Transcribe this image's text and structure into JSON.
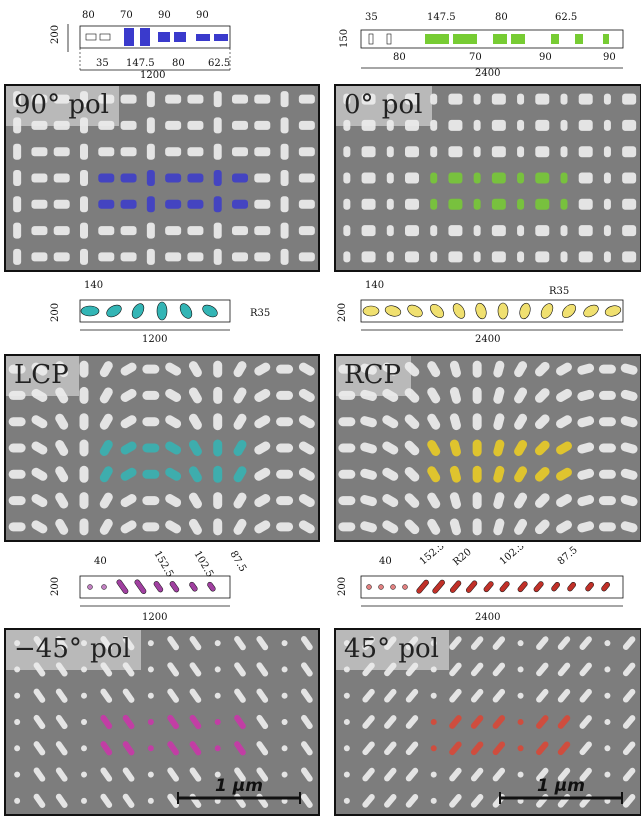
{
  "panels": [
    {
      "id": "p1",
      "label": "90° pol",
      "pattern": "rect",
      "color": "#3a3acc"
    },
    {
      "id": "p2",
      "label": "0° pol",
      "pattern": "rect2",
      "color": "#77cc33"
    },
    {
      "id": "p3",
      "label": "LCP",
      "pattern": "ellipse",
      "color": "#33b5b5"
    },
    {
      "id": "p4",
      "label": "RCP",
      "pattern": "ellipse2",
      "color": "#f0d020"
    },
    {
      "id": "p5",
      "label": "−45° pol",
      "pattern": "diag",
      "color": "#cc33aa",
      "scale_bar": "1 μm"
    },
    {
      "id": "p6",
      "label": "45° pol",
      "pattern": "diag2",
      "color": "#dd4433",
      "scale_bar": "1 μm"
    }
  ],
  "diagrams": {
    "d1": {
      "height": "200",
      "width": "1200",
      "top_dims": [
        "80",
        "70",
        "90",
        "90"
      ],
      "bottom_dims": [
        "35",
        "147.5",
        "80",
        "62.5"
      ]
    },
    "d2": {
      "height": "150",
      "width": "2400",
      "top_dims": [
        "35",
        "147.5",
        "80",
        "62.5"
      ],
      "bottom_dims": [
        "80",
        "70",
        "90",
        "90"
      ]
    },
    "d3": {
      "height": "200",
      "width": "1200",
      "top_dim": "140",
      "radius": "R35"
    },
    "d4": {
      "height": "200",
      "width": "2400",
      "top_dim": "140",
      "radius": "R35"
    },
    "d5": {
      "height": "200",
      "width": "1200",
      "dims": [
        "40",
        "152.5",
        "102.5",
        "87.5"
      ]
    },
    "d6": {
      "height": "200",
      "width": "2400",
      "dims": [
        "40",
        "152.5",
        "R20",
        "102.5",
        "87.5"
      ]
    }
  }
}
